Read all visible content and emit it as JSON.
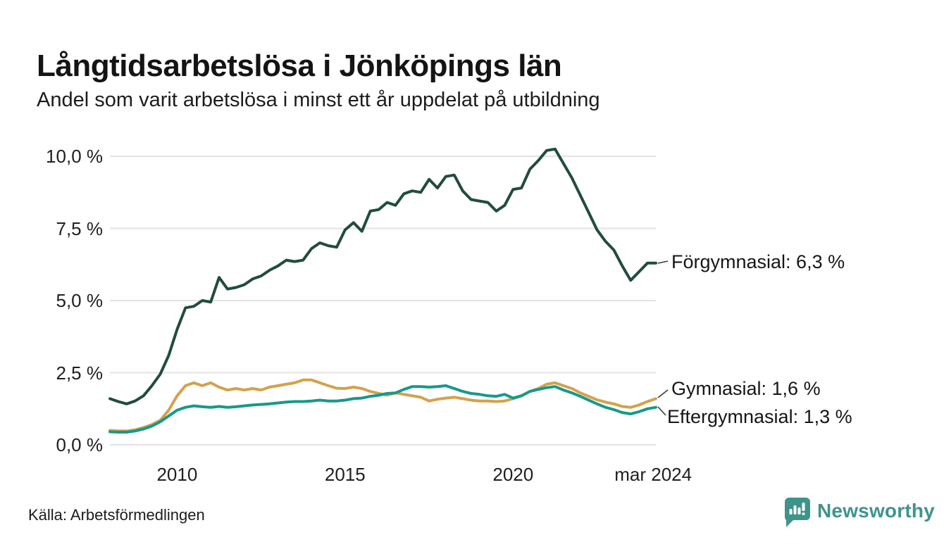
{
  "title": "Långtidsarbetslösa i Jönköpings län",
  "subtitle": "Andel som varit arbetslösa i minst ett år uppdelat på utbildning",
  "source": "Källa: Arbetsförmedlingen",
  "branding": {
    "name": "Newsworthy",
    "color": "#3e948b",
    "icon": "newsworthy-speech-bubble-barchart-icon"
  },
  "chart_data": {
    "type": "line",
    "title": "Långtidsarbetslösa i Jönköpings län",
    "subtitle": "Andel som varit arbetslösa i minst ett år uppdelat på utbildning",
    "xlabel": "",
    "ylabel": "",
    "unit": "%",
    "grid": "horizontal-only",
    "legend_position": "right-end-labels",
    "x_start": 2008.0,
    "x_step": 0.25,
    "x_range": [
      2008.0,
      2024.25
    ],
    "ylim": [
      0,
      10.8
    ],
    "y_ticks": [
      {
        "value": 0,
        "label": "0,0 %"
      },
      {
        "value": 2.5,
        "label": "2,5 %"
      },
      {
        "value": 5,
        "label": "5,0 %"
      },
      {
        "value": 7.5,
        "label": "7,5 %"
      },
      {
        "value": 10,
        "label": "10,0 %"
      }
    ],
    "x_ticks": [
      {
        "value": 2010,
        "label": "2010"
      },
      {
        "value": 2015,
        "label": "2015"
      },
      {
        "value": 2020,
        "label": "2020"
      },
      {
        "value": 2024.17,
        "label": "mar 2024"
      }
    ],
    "series": [
      {
        "name": "Förgymnasial",
        "end_label": "Förgymnasial: 6,3 %",
        "end_value": "6,3 %",
        "color": "#214c3f",
        "values": [
          1.6,
          1.5,
          1.42,
          1.52,
          1.7,
          2.05,
          2.45,
          3.1,
          4.0,
          4.75,
          4.8,
          5.0,
          4.95,
          5.8,
          5.4,
          5.45,
          5.55,
          5.75,
          5.85,
          6.05,
          6.2,
          6.4,
          6.35,
          6.4,
          6.8,
          7.0,
          6.9,
          6.85,
          7.45,
          7.7,
          7.4,
          8.1,
          8.15,
          8.4,
          8.3,
          8.7,
          8.8,
          8.75,
          9.2,
          8.9,
          9.3,
          9.35,
          8.8,
          8.5,
          8.45,
          8.4,
          8.1,
          8.3,
          8.85,
          8.9,
          9.55,
          9.85,
          10.2,
          10.25,
          9.75,
          9.25,
          8.65,
          8.05,
          7.45,
          7.05,
          6.75,
          6.2,
          5.7,
          6.0,
          6.3,
          6.3
        ]
      },
      {
        "name": "Gymnasial",
        "end_label": "Gymnasial: 1,6 %",
        "end_value": "1,6 %",
        "color": "#d2a24c",
        "values": [
          0.5,
          0.48,
          0.48,
          0.52,
          0.6,
          0.7,
          0.85,
          1.2,
          1.7,
          2.05,
          2.15,
          2.05,
          2.15,
          2.0,
          1.9,
          1.95,
          1.9,
          1.95,
          1.9,
          2.0,
          2.05,
          2.1,
          2.15,
          2.25,
          2.25,
          2.15,
          2.05,
          1.96,
          1.95,
          2.0,
          1.95,
          1.85,
          1.78,
          1.72,
          1.8,
          1.75,
          1.7,
          1.65,
          1.52,
          1.58,
          1.62,
          1.65,
          1.6,
          1.55,
          1.52,
          1.52,
          1.5,
          1.52,
          1.6,
          1.7,
          1.85,
          1.95,
          2.1,
          2.15,
          2.05,
          1.95,
          1.8,
          1.68,
          1.56,
          1.48,
          1.42,
          1.33,
          1.3,
          1.38,
          1.5,
          1.6
        ]
      },
      {
        "name": "Eftergymnasial",
        "end_label": "Eftergymnasial: 1,3 %",
        "end_value": "1,3 %",
        "color": "#17998a",
        "values": [
          0.45,
          0.44,
          0.44,
          0.48,
          0.55,
          0.65,
          0.8,
          1.0,
          1.2,
          1.3,
          1.35,
          1.32,
          1.3,
          1.33,
          1.3,
          1.32,
          1.35,
          1.38,
          1.4,
          1.42,
          1.45,
          1.48,
          1.5,
          1.5,
          1.52,
          1.55,
          1.52,
          1.52,
          1.55,
          1.6,
          1.62,
          1.68,
          1.72,
          1.78,
          1.8,
          1.92,
          2.02,
          2.02,
          2.0,
          2.02,
          2.05,
          1.95,
          1.85,
          1.78,
          1.75,
          1.7,
          1.68,
          1.75,
          1.62,
          1.7,
          1.85,
          1.92,
          1.98,
          2.02,
          1.9,
          1.8,
          1.68,
          1.55,
          1.42,
          1.3,
          1.22,
          1.12,
          1.07,
          1.15,
          1.25,
          1.3
        ]
      }
    ]
  }
}
